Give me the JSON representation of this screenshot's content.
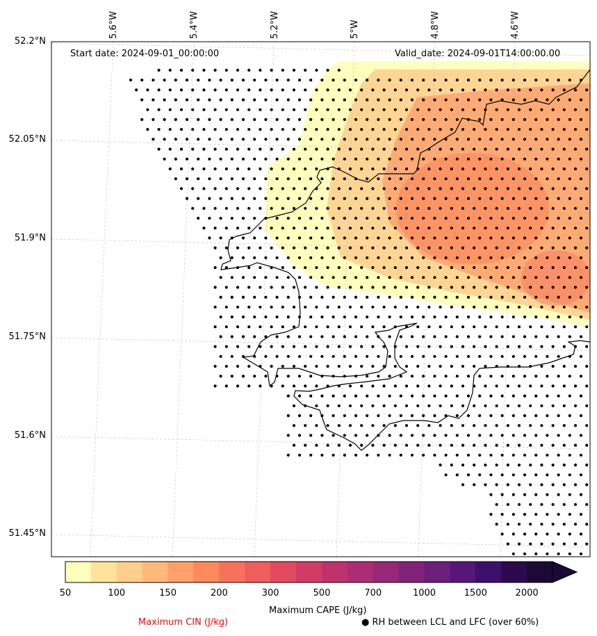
{
  "map": {
    "start_label": "Start date: 2024-09-01_00:00:00",
    "valid_label": "Valid_date: 2024-09-01T14:00:00.00",
    "longitude_labels": [
      "5.6°W",
      "5.4°W",
      "5.2°W",
      "5°W",
      "4.8°W",
      "4.6°W"
    ],
    "latitude_labels": [
      "52.2°N",
      "52.05°N",
      "51.9°N",
      "51.75°N",
      "51.6°N",
      "51.45°N"
    ],
    "coastline_color": "#000000",
    "gridlines": true
  },
  "colorbar": {
    "ticks": [
      "50",
      "100",
      "150",
      "200",
      "300",
      "500",
      "700",
      "1000",
      "1500",
      "2000"
    ],
    "colors": [
      "#fffebd",
      "#fee49a",
      "#fece8c",
      "#feb87a",
      "#fda06c",
      "#fc8a5a",
      "#f7725c",
      "#ef5d5c",
      "#e2495e",
      "#d13c66",
      "#bf336d",
      "#ab2e73",
      "#962877",
      "#812379",
      "#6c1f7a",
      "#561779",
      "#3e0f6b",
      "#2b0b4e",
      "#1b0a36"
    ],
    "label": "Maximum CAPE (J/kg)",
    "extend": "max"
  },
  "legend": {
    "cin_label": "Maximum CIN (J/kg)",
    "cin_color": "#ff0000",
    "rh_label": "● RH between LCL and LFC (over 60%)"
  }
}
